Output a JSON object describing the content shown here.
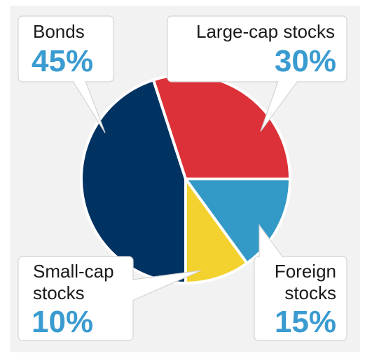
{
  "chart_data": {
    "type": "pie",
    "categories": [
      "Bonds",
      "Large-cap stocks",
      "Foreign stocks",
      "Small-cap stocks"
    ],
    "values": [
      45,
      30,
      15,
      10
    ],
    "value_labels": [
      "45%",
      "30%",
      "15%",
      "10%"
    ],
    "label_lines": [
      [
        "Bonds"
      ],
      [
        "Large-cap stocks"
      ],
      [
        "Foreign",
        "stocks"
      ],
      [
        "Small-cap",
        "stocks"
      ]
    ],
    "colors": [
      "#003262",
      "#dc3138",
      "#3399c6",
      "#f3d12e"
    ],
    "unit": "%",
    "title": "",
    "legend": "callouts"
  }
}
